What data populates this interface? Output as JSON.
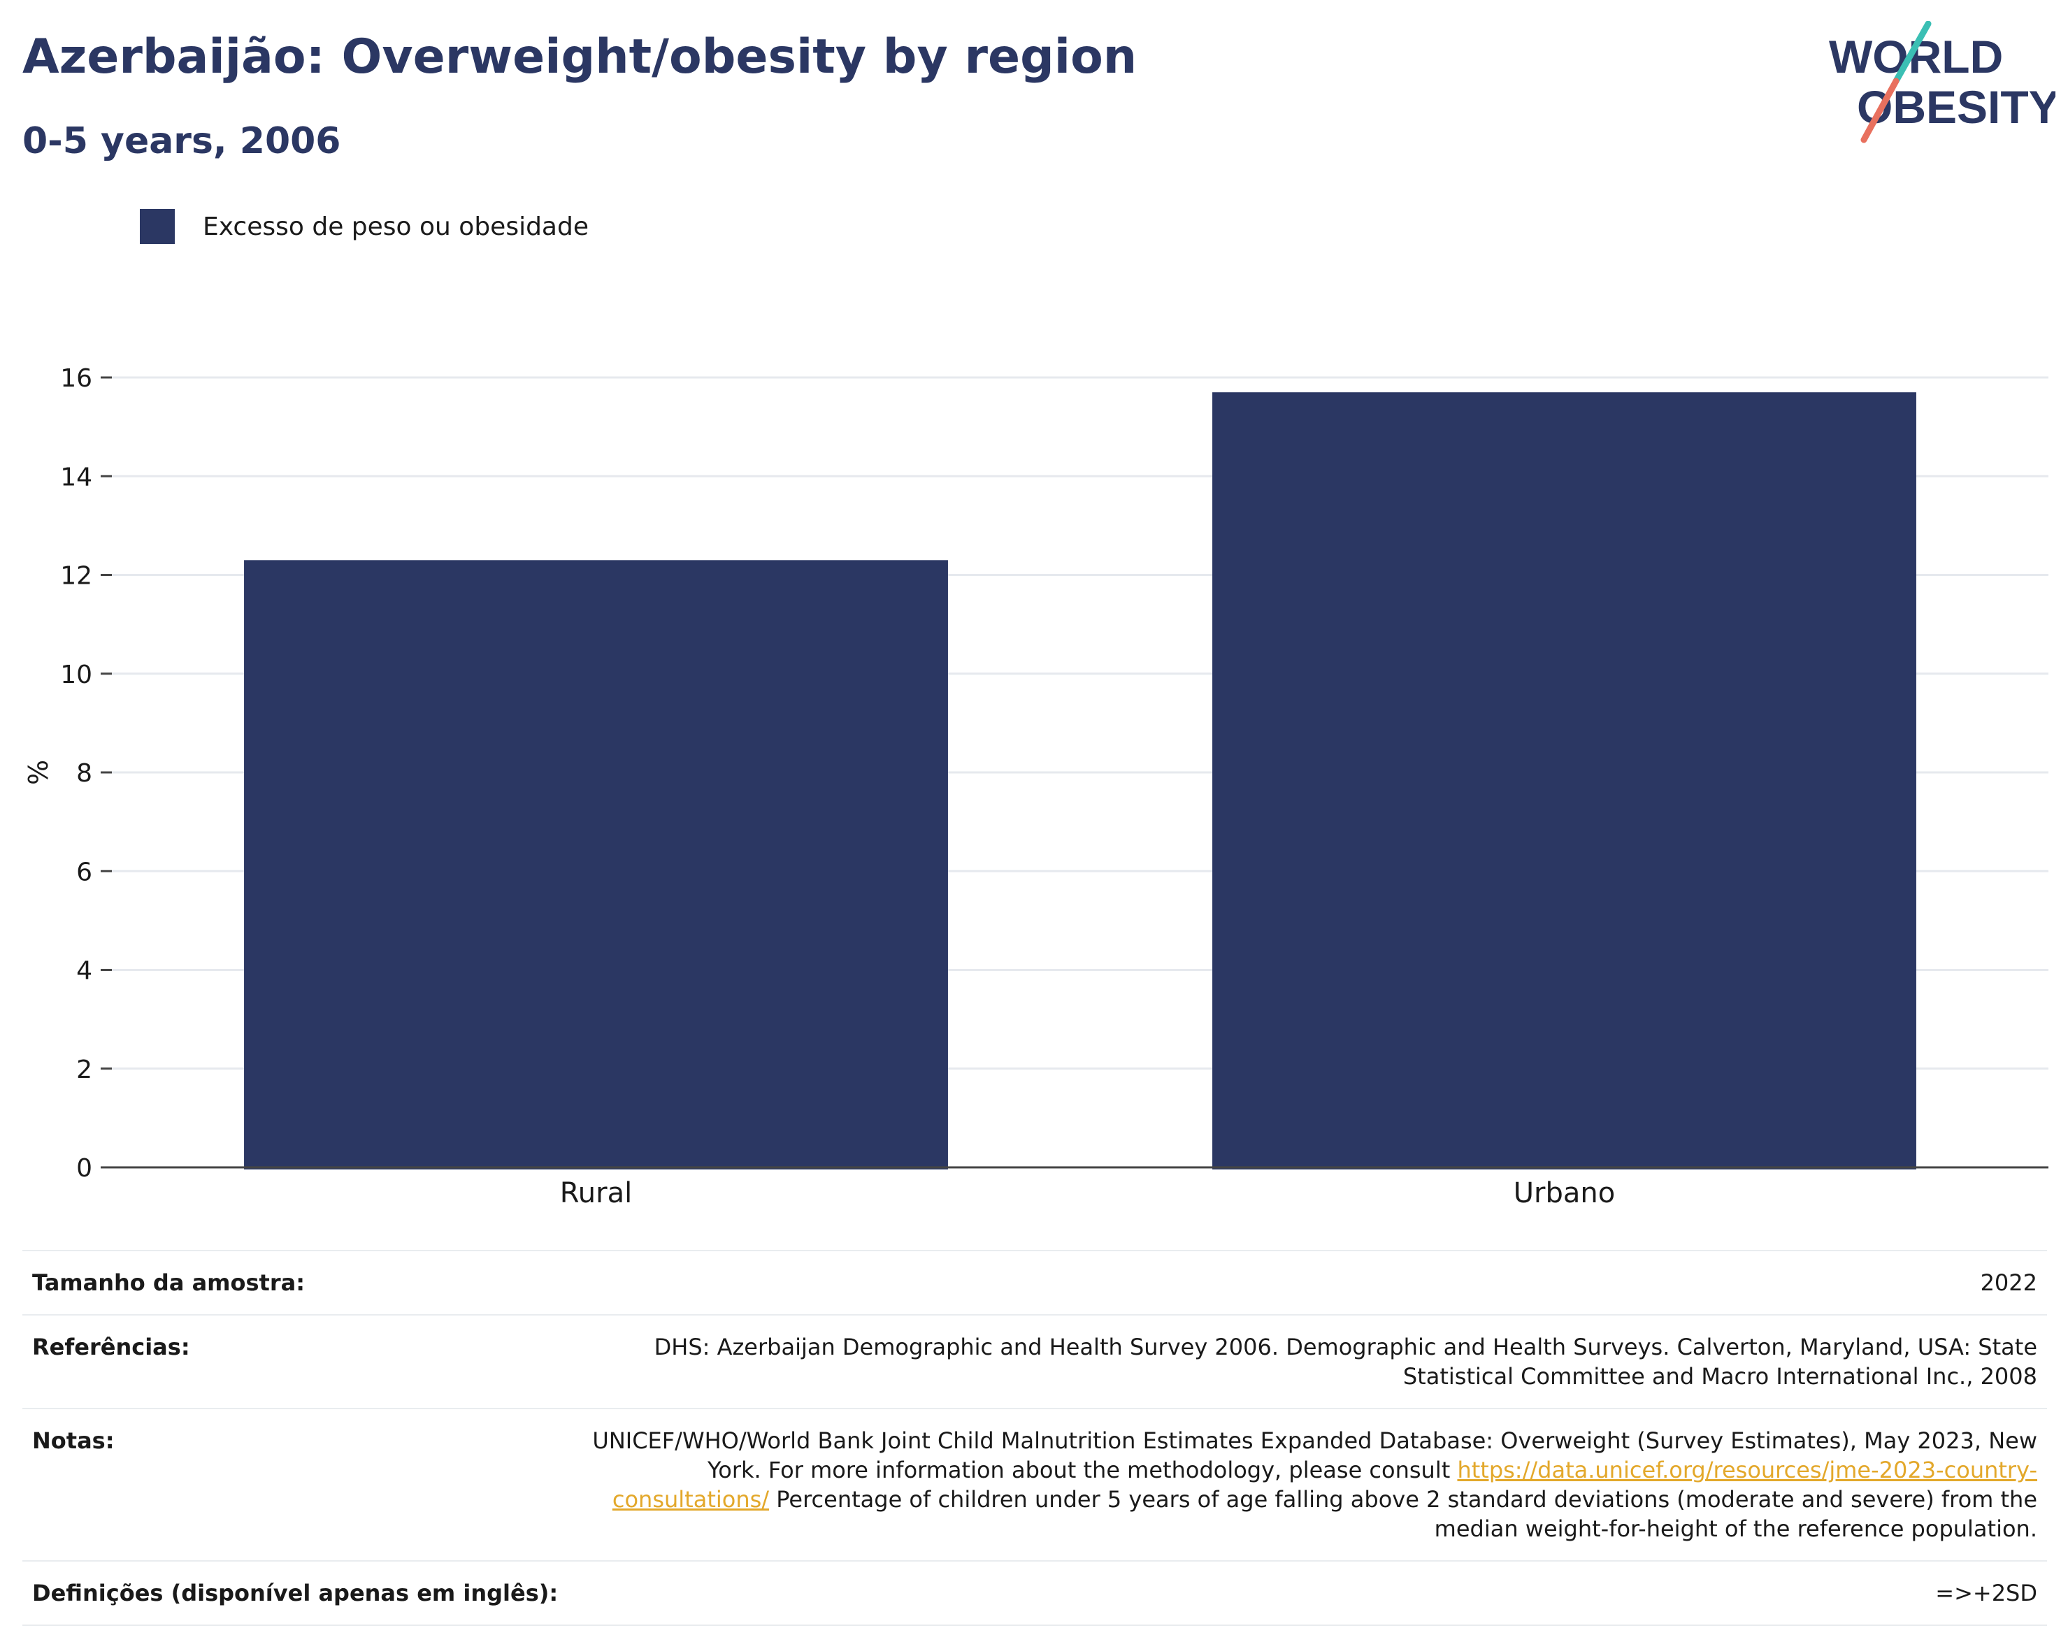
{
  "header": {
    "title": "Azerbaijão: Overweight/obesity by region",
    "subtitle": "0-5 years, 2006"
  },
  "logo": {
    "line1": "WORLD",
    "line2": "OBESITY",
    "accent_teal": "#3bbfb4",
    "accent_coral": "#e8705e"
  },
  "colors": {
    "bar": "#2b3763",
    "text_dark": "#2b3763"
  },
  "legend": {
    "items": [
      {
        "label": "Excesso de peso ou obesidade",
        "color": "#2b3763"
      }
    ]
  },
  "chart_data": {
    "type": "bar",
    "categories": [
      "Rural",
      "Urbano"
    ],
    "series": [
      {
        "name": "Excesso de peso ou obesidade",
        "values": [
          12.3,
          15.7
        ]
      }
    ],
    "ylabel": "%",
    "ylim": [
      0,
      16
    ],
    "yticks": [
      0,
      2,
      4,
      6,
      8,
      10,
      12,
      14,
      16
    ],
    "grid": true,
    "legend_position": "top-left"
  },
  "meta": {
    "sample_size": {
      "label": "Tamanho da amostra:",
      "value": "2022"
    },
    "references": {
      "label": "Referências:",
      "value": "DHS: Azerbaijan Demographic and Health Survey 2006. Demographic and Health Surveys. Calverton, Maryland, USA: State Statistical Committee and Macro International Inc., 2008"
    },
    "notes": {
      "label": "Notas:",
      "text_before": "UNICEF/WHO/World Bank Joint Child Malnutrition Estimates Expanded Database: Overweight (Survey Estimates), May 2023, New York. For more information about the methodology, please consult ",
      "link": "https://data.unicef.org/resources/jme-2023-country-consultations/",
      "text_after": " Percentage of children under 5 years of age falling above 2 standard deviations (moderate and severe) from the median weight-for-height of the reference population."
    },
    "definitions": {
      "label": "Definições (disponível apenas em inglês):",
      "value": "=>+2SD"
    }
  }
}
